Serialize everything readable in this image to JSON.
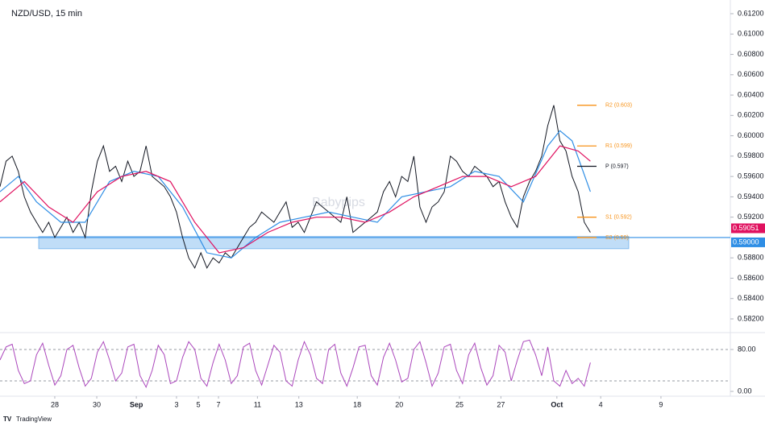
{
  "chart_data": [
    {
      "type": "line",
      "title": "NZD/USD, 15 min",
      "watermark": "Babypips",
      "xlim": [
        0,
        120
      ],
      "ylim": [
        0.582,
        0.612
      ],
      "yticks": [
        {
          "value": 0.582,
          "label": "0.58200"
        },
        {
          "value": 0.584,
          "label": "0.58400"
        },
        {
          "value": 0.586,
          "label": "0.58600"
        },
        {
          "value": 0.588,
          "label": "0.58800"
        },
        {
          "value": 0.592,
          "label": "0.59200"
        },
        {
          "value": 0.594,
          "label": "0.59400"
        },
        {
          "value": 0.596,
          "label": "0.59600"
        },
        {
          "value": 0.598,
          "label": "0.59800"
        },
        {
          "value": 0.6,
          "label": "0.60000"
        },
        {
          "value": 0.602,
          "label": "0.60200"
        },
        {
          "value": 0.604,
          "label": "0.60400"
        },
        {
          "value": 0.606,
          "label": "0.60600"
        },
        {
          "value": 0.608,
          "label": "0.60800"
        },
        {
          "value": 0.61,
          "label": "0.61000"
        },
        {
          "value": 0.612,
          "label": "0.61200"
        }
      ],
      "xticks": [
        {
          "value": 9,
          "label": "28"
        },
        {
          "value": 15.9,
          "label": "30"
        },
        {
          "value": 22.4,
          "label": "Sep"
        },
        {
          "value": 29,
          "label": "3"
        },
        {
          "value": 32.6,
          "label": "5"
        },
        {
          "value": 35.9,
          "label": "7"
        },
        {
          "value": 42.3,
          "label": "11"
        },
        {
          "value": 49.1,
          "label": "13"
        },
        {
          "value": 58.7,
          "label": "18"
        },
        {
          "value": 65.6,
          "label": "20"
        },
        {
          "value": 75.5,
          "label": "25"
        },
        {
          "value": 82.3,
          "label": "27"
        },
        {
          "value": 91.5,
          "label": "Oct"
        },
        {
          "value": 98.7,
          "label": "4"
        },
        {
          "value": 108.6,
          "label": "9"
        }
      ],
      "series": [
        {
          "color": "#131722",
          "values": [
            0.595,
            0.5975,
            0.598,
            0.5965,
            0.594,
            0.5925,
            0.5915,
            0.5905,
            0.5915,
            0.59,
            0.591,
            0.592,
            0.5905,
            0.5915,
            0.59,
            0.5945,
            0.5975,
            0.599,
            0.5965,
            0.597,
            0.5955,
            0.5975,
            0.596,
            0.5965,
            0.599,
            0.596,
            0.5955,
            0.595,
            0.594,
            0.5925,
            0.59,
            0.588,
            0.587,
            0.5885,
            0.587,
            0.588,
            0.5875,
            0.5885,
            0.588,
            0.589,
            0.59,
            0.591,
            0.5915,
            0.5925,
            0.592,
            0.5915,
            0.5925,
            0.5935,
            0.591,
            0.5915,
            0.5905,
            0.592,
            0.5935,
            0.593,
            0.5925,
            0.592,
            0.5915,
            0.594,
            0.5905,
            0.591,
            0.5915,
            0.592,
            0.5925,
            0.5945,
            0.5955,
            0.594,
            0.596,
            0.5955,
            0.598,
            0.593,
            0.5915,
            0.593,
            0.5935,
            0.5945,
            0.598,
            0.5975,
            0.5965,
            0.596,
            0.597,
            0.5965,
            0.596,
            0.595,
            0.5955,
            0.5935,
            0.592,
            0.591,
            0.594,
            0.5955,
            0.5965,
            0.598,
            0.601,
            0.603,
            0.5995,
            0.5985,
            0.596,
            0.5945,
            0.5915,
            0.5905
          ]
        },
        {
          "color": "#2f8ee5",
          "x": [
            0,
            3,
            6,
            10,
            14,
            18,
            22,
            26,
            30,
            34,
            38,
            42,
            46,
            50,
            54,
            58,
            62,
            66,
            70,
            74,
            78,
            82,
            86,
            90,
            92,
            94,
            97
          ],
          "values": [
            0.5945,
            0.596,
            0.5935,
            0.5915,
            0.5915,
            0.5955,
            0.5965,
            0.596,
            0.593,
            0.5885,
            0.588,
            0.59,
            0.5915,
            0.592,
            0.5925,
            0.592,
            0.5915,
            0.594,
            0.5945,
            0.595,
            0.5965,
            0.596,
            0.5935,
            0.599,
            0.6005,
            0.5995,
            0.5945
          ]
        },
        {
          "color": "#e0115f",
          "x": [
            0,
            4,
            8,
            12,
            16,
            20,
            24,
            28,
            32,
            36,
            40,
            44,
            48,
            52,
            56,
            60,
            64,
            68,
            72,
            76,
            80,
            84,
            88,
            92,
            95,
            97
          ],
          "values": [
            0.5935,
            0.5955,
            0.593,
            0.5915,
            0.5945,
            0.596,
            0.5965,
            0.5955,
            0.5915,
            0.5885,
            0.589,
            0.5905,
            0.5915,
            0.592,
            0.592,
            0.5915,
            0.5925,
            0.594,
            0.595,
            0.596,
            0.596,
            0.595,
            0.596,
            0.599,
            0.5985,
            0.5975
          ]
        }
      ],
      "pivots": [
        {
          "label": "R2 (0.603)",
          "value": 0.603,
          "color": "#f7931a"
        },
        {
          "label": "R1 (0.599)",
          "value": 0.599,
          "color": "#f7931a"
        },
        {
          "label": "P (0.597)",
          "value": 0.597,
          "color": "#131722"
        },
        {
          "label": "S1 (0.592)",
          "value": 0.592,
          "color": "#f7931a"
        },
        {
          "label": "S2 (0.59)",
          "value": 0.59,
          "color": "#f7931a"
        }
      ],
      "support_zone": [
        0.5889,
        0.5901
      ],
      "level_line": {
        "value": 0.59,
        "label": "0.59000",
        "color": "#2f8ee5"
      },
      "last_price": {
        "value": 0.59051,
        "label": "0.59051",
        "color": "#e0115f"
      }
    },
    {
      "type": "line",
      "xlim": [
        0,
        120
      ],
      "ylim": [
        0,
        100
      ],
      "yticks": [
        {
          "value": 80,
          "label": "80.00"
        },
        {
          "value": 0,
          "label": "0.00"
        }
      ],
      "levels": [
        80,
        20
      ],
      "series": [
        {
          "color": "#ab47bc",
          "values": [
            60,
            85,
            90,
            40,
            15,
            20,
            70,
            92,
            50,
            12,
            30,
            80,
            88,
            45,
            10,
            25,
            75,
            95,
            60,
            20,
            35,
            85,
            90,
            30,
            8,
            40,
            88,
            70,
            15,
            20,
            65,
            95,
            80,
            25,
            10,
            55,
            90,
            60,
            15,
            30,
            85,
            92,
            40,
            12,
            50,
            88,
            75,
            20,
            10,
            60,
            95,
            70,
            25,
            15,
            80,
            90,
            35,
            10,
            45,
            85,
            88,
            30,
            12,
            65,
            92,
            60,
            18,
            25,
            80,
            95,
            55,
            10,
            35,
            85,
            90,
            40,
            15,
            70,
            92,
            45,
            12,
            30,
            88,
            75,
            20,
            60,
            95,
            98,
            70,
            30,
            85,
            20,
            10,
            40,
            15,
            25,
            10,
            55
          ]
        }
      ]
    }
  ],
  "branding": "TradingView"
}
